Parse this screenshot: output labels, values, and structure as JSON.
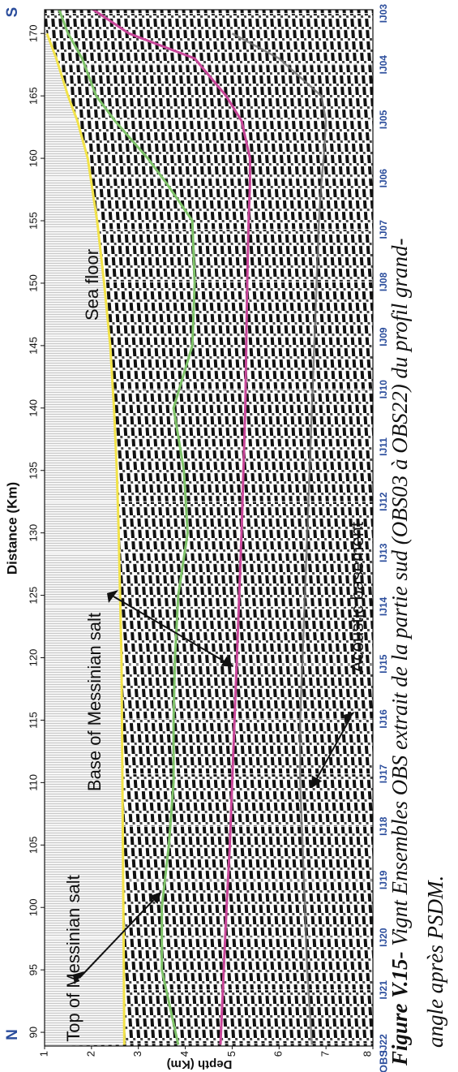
{
  "chart_data": {
    "type": "line",
    "x_label": "Distance (Km)",
    "y_label": "Depth (Km)",
    "direction_labels": [
      "N",
      "S"
    ],
    "x": [
      89,
      95,
      100,
      105,
      110,
      115,
      120,
      125,
      130,
      135,
      140,
      145,
      150,
      155,
      158,
      160,
      163,
      165,
      168,
      170,
      172
    ],
    "series": [
      {
        "color": "#f2e34a",
        "values": [
          2.7,
          2.69,
          2.68,
          2.67,
          2.66,
          2.65,
          2.64,
          2.61,
          2.58,
          2.54,
          2.48,
          2.4,
          2.27,
          2.12,
          2.0,
          1.92,
          1.7,
          1.5,
          1.25,
          1.05,
          null
        ]
      },
      {
        "color": "#7fc36a",
        "values": [
          3.85,
          3.5,
          3.5,
          3.65,
          3.75,
          3.75,
          3.78,
          3.85,
          4.05,
          3.97,
          3.75,
          4.15,
          4.2,
          4.15,
          3.6,
          3.2,
          2.5,
          2.1,
          1.8,
          1.5,
          1.3
        ]
      },
      {
        "color": "#c9479a",
        "values": [
          4.75,
          4.82,
          4.88,
          4.95,
          5.0,
          5.05,
          5.1,
          5.15,
          5.2,
          5.24,
          5.28,
          5.3,
          5.32,
          5.35,
          5.38,
          5.38,
          5.2,
          4.87,
          4.2,
          2.8,
          2.0
        ]
      },
      {
        "color": "#6b6b6b",
        "values": [
          6.7,
          6.6,
          6.55,
          6.5,
          6.45,
          6.45,
          6.5,
          6.55,
          6.6,
          6.65,
          6.7,
          6.75,
          6.8,
          6.85,
          6.9,
          6.95,
          7.0,
          6.9,
          6.0,
          5.0,
          null
        ]
      }
    ],
    "xlim": [
      88.9,
      171.9
    ],
    "xticks": [
      90,
      95,
      100,
      105,
      110,
      115,
      120,
      125,
      130,
      135,
      140,
      145,
      150,
      155,
      160,
      165,
      170
    ],
    "ylim": [
      1,
      8
    ],
    "yticks": [
      1,
      2,
      3,
      4,
      5,
      6,
      7,
      8
    ],
    "obs_label": "OBS",
    "stations": [
      {
        "label": "IJ03",
        "x": 171.6
      },
      {
        "label": "IJ04",
        "x": 167.5
      },
      {
        "label": "IJ05",
        "x": 163.1
      },
      {
        "label": "IJ06",
        "x": 158.4
      },
      {
        "label": "IJ07",
        "x": 154.3
      },
      {
        "label": "IJ08",
        "x": 150.1
      },
      {
        "label": "IJ09",
        "x": 145.7
      },
      {
        "label": "IJ10",
        "x": 141.5
      },
      {
        "label": "IJ11",
        "x": 136.9
      },
      {
        "label": "IJ12",
        "x": 132.5
      },
      {
        "label": "IJ13",
        "x": 128.4
      },
      {
        "label": "IJ14",
        "x": 124.1
      },
      {
        "label": "IJ15",
        "x": 119.5
      },
      {
        "label": "IJ16",
        "x": 115.1
      },
      {
        "label": "IJ17",
        "x": 110.7
      },
      {
        "label": "IJ18",
        "x": 106.5
      },
      {
        "label": "IJ19",
        "x": 102.2
      },
      {
        "label": "IJ20",
        "x": 97.6
      },
      {
        "label": "IJ21",
        "x": 93.4
      },
      {
        "label": "IJ22",
        "x": 89.1
      }
    ],
    "annotations": [
      "Sea floor",
      "Base of Messinian salt",
      "Top of Messinian salt",
      "Acoustic basement"
    ]
  },
  "caption": {
    "label": "Figure V.15-",
    "text": " Vignt Ensembles OBS extrait de la partie sud (OBS03 à OBS22) du profil grand-",
    "text2": "angle après PSDM."
  }
}
